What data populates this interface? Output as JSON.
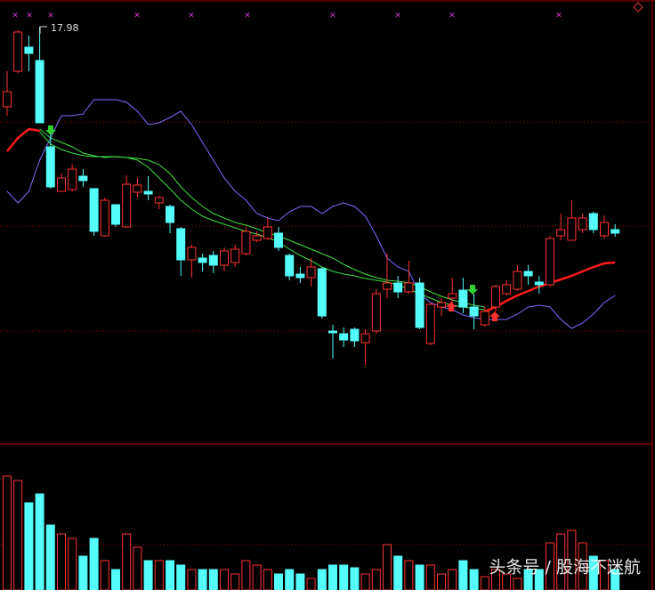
{
  "chart_data": [
    {
      "type": "candlestick",
      "open": [
        16.18,
        16.98,
        17.52,
        17.22,
        15.28,
        14.28,
        14.32,
        14.62,
        14.34,
        13.28,
        13.98,
        13.48,
        14.26,
        14.28,
        14.02,
        13.94,
        13.44,
        12.74,
        12.78,
        12.84,
        12.62,
        12.68,
        12.88,
        13.18,
        13.22,
        13.34,
        12.84,
        12.42,
        12.34,
        12.54,
        11.14,
        11.08,
        11.18,
        10.88,
        11.14,
        12.08,
        12.22,
        12.02,
        12.22,
        10.86,
        11.68,
        11.88,
        12.06,
        11.68,
        11.28,
        11.68,
        11.98,
        12.08,
        12.48,
        12.24,
        12.18,
        13.28,
        13.18,
        13.42,
        13.78,
        13.28,
        13.42
      ],
      "high": [
        16.98,
        17.9,
        17.78,
        17.98,
        15.68,
        14.68,
        14.88,
        14.78,
        14.34,
        14.14,
        13.98,
        14.64,
        14.58,
        14.62,
        14.18,
        13.98,
        13.48,
        13.08,
        12.88,
        12.94,
        13.02,
        13.08,
        13.48,
        13.38,
        13.68,
        13.48,
        12.88,
        12.58,
        12.78,
        12.58,
        11.28,
        11.22,
        11.22,
        11.18,
        12.08,
        12.88,
        12.38,
        12.72,
        12.34,
        11.78,
        11.88,
        12.34,
        12.34,
        11.98,
        11.68,
        12.18,
        12.28,
        12.62,
        12.62,
        12.38,
        13.28,
        13.78,
        14.08,
        13.78,
        13.82,
        13.74,
        13.54
      ],
      "low": [
        15.98,
        16.94,
        16.98,
        15.82,
        14.34,
        14.28,
        14.28,
        14.38,
        13.28,
        13.26,
        13.48,
        13.46,
        14.14,
        14.08,
        13.88,
        13.34,
        12.38,
        12.34,
        12.48,
        12.44,
        12.48,
        12.58,
        12.84,
        13.14,
        13.18,
        12.94,
        12.28,
        12.22,
        12.14,
        11.42,
        10.52,
        10.78,
        10.78,
        10.38,
        11.08,
        11.88,
        11.88,
        11.98,
        11.18,
        10.82,
        11.48,
        11.58,
        11.54,
        11.18,
        11.24,
        11.58,
        11.94,
        12.04,
        12.18,
        11.98,
        12.14,
        13.18,
        13.18,
        13.34,
        13.34,
        13.22,
        13.26
      ],
      "close": [
        16.52,
        17.86,
        17.38,
        15.82,
        14.38,
        14.58,
        14.78,
        14.52,
        13.38,
        14.08,
        13.54,
        14.44,
        14.42,
        14.22,
        14.14,
        13.58,
        12.74,
        13.02,
        12.68,
        12.62,
        12.94,
        12.98,
        13.38,
        13.28,
        13.48,
        13.02,
        12.38,
        12.34,
        12.58,
        11.48,
        11.1,
        10.94,
        10.92,
        11.08,
        11.98,
        12.22,
        12.02,
        12.22,
        11.22,
        11.74,
        11.78,
        11.98,
        11.68,
        11.48,
        11.58,
        12.14,
        12.18,
        12.48,
        12.38,
        12.18,
        13.22,
        13.42,
        13.68,
        13.68,
        13.42,
        13.58,
        13.34
      ],
      "up_color": "#ff3232",
      "down_color": "#54fcfc",
      "ylim": [
        8.64,
        18.58
      ],
      "lines": [
        {
          "color": "#7a6cff",
          "width": 1,
          "values": [
            14.28,
            14.02,
            14.28,
            14.98,
            15.48,
            15.98,
            15.98,
            16.02,
            16.34,
            16.34,
            16.34,
            16.28,
            16.08,
            15.78,
            15.82,
            15.94,
            16.08,
            15.78,
            15.38,
            14.98,
            14.58,
            14.28,
            14.08,
            13.78,
            13.68,
            13.62,
            13.82,
            13.94,
            13.94,
            13.78,
            13.94,
            14.02,
            13.94,
            13.72,
            13.28,
            12.78,
            12.58,
            12.48,
            11.98,
            11.78,
            11.68,
            11.62,
            11.5,
            11.44,
            11.4,
            11.4,
            11.4,
            11.52,
            11.68,
            11.72,
            11.68,
            11.4,
            11.2,
            11.32,
            11.52,
            11.78,
            11.94
          ]
        },
        {
          "color": "#40e040",
          "width": 1,
          "values": [
            null,
            null,
            null,
            15.68,
            15.48,
            15.38,
            15.28,
            15.14,
            15.08,
            15.04,
            15.06,
            15.04,
            15.02,
            14.98,
            14.88,
            14.68,
            14.38,
            14.14,
            13.94,
            13.78,
            13.68,
            13.58,
            13.52,
            13.44,
            13.34,
            13.28,
            13.18,
            13.08,
            12.98,
            12.88,
            12.78,
            12.64,
            12.52,
            12.42,
            12.34,
            12.28,
            12.26,
            12.22,
            12.14,
            12.02,
            11.92,
            11.84,
            11.78,
            11.72,
            11.68,
            null,
            null,
            null,
            null,
            null,
            null,
            null,
            null,
            null,
            null,
            null,
            null
          ]
        },
        {
          "color": "#40e040",
          "width": 1,
          "values": [
            null,
            null,
            null,
            15.62,
            15.34,
            15.22,
            15.14,
            15.08,
            15.06,
            15.06,
            15.06,
            15.04,
            14.98,
            14.82,
            14.58,
            14.34,
            14.08,
            13.88,
            13.72,
            13.62,
            13.54,
            13.46,
            13.38,
            13.32,
            13.24,
            13.14,
            12.98,
            12.84,
            12.72,
            12.58,
            12.48,
            12.42,
            12.38,
            12.32,
            12.28,
            12.24,
            12.18,
            12.08,
            11.98,
            11.88,
            11.78,
            11.72,
            11.68,
            11.64,
            11.62,
            null,
            null,
            null,
            null,
            null,
            null,
            null,
            null,
            null,
            null,
            null,
            null
          ]
        },
        {
          "color": "#ff1a1a",
          "width": 2.5,
          "values": [
            15.18,
            15.48,
            15.68,
            15.64,
            null,
            null,
            null,
            null,
            null,
            null,
            null,
            null,
            null,
            null,
            null,
            null,
            null,
            null,
            null,
            null,
            null,
            null,
            null,
            null,
            null,
            null,
            null,
            null,
            null,
            null,
            null,
            null,
            null,
            null,
            null,
            null,
            null,
            null,
            null,
            null,
            null,
            null,
            null,
            null,
            11.58,
            11.68,
            11.82,
            11.94,
            12.04,
            12.14,
            12.22,
            12.3,
            12.38,
            12.48,
            12.58,
            12.66,
            12.68
          ]
        }
      ]
    },
    {
      "type": "bar",
      "values": [
        128,
        123,
        98,
        108,
        73,
        63,
        58,
        38,
        58,
        33,
        23,
        63,
        48,
        33,
        33,
        33,
        28,
        23,
        23,
        23,
        23,
        18,
        33,
        28,
        23,
        18,
        23,
        18,
        13,
        23,
        28,
        28,
        25,
        18,
        23,
        51,
        38,
        33,
        28,
        28,
        18,
        23,
        33,
        23,
        15,
        23,
        18,
        13,
        23,
        23,
        53,
        63,
        67,
        53,
        38,
        33,
        23
      ],
      "ylim": [
        0,
        163
      ]
    }
  ],
  "watermark": "头条号 / 股海不迷航"
}
